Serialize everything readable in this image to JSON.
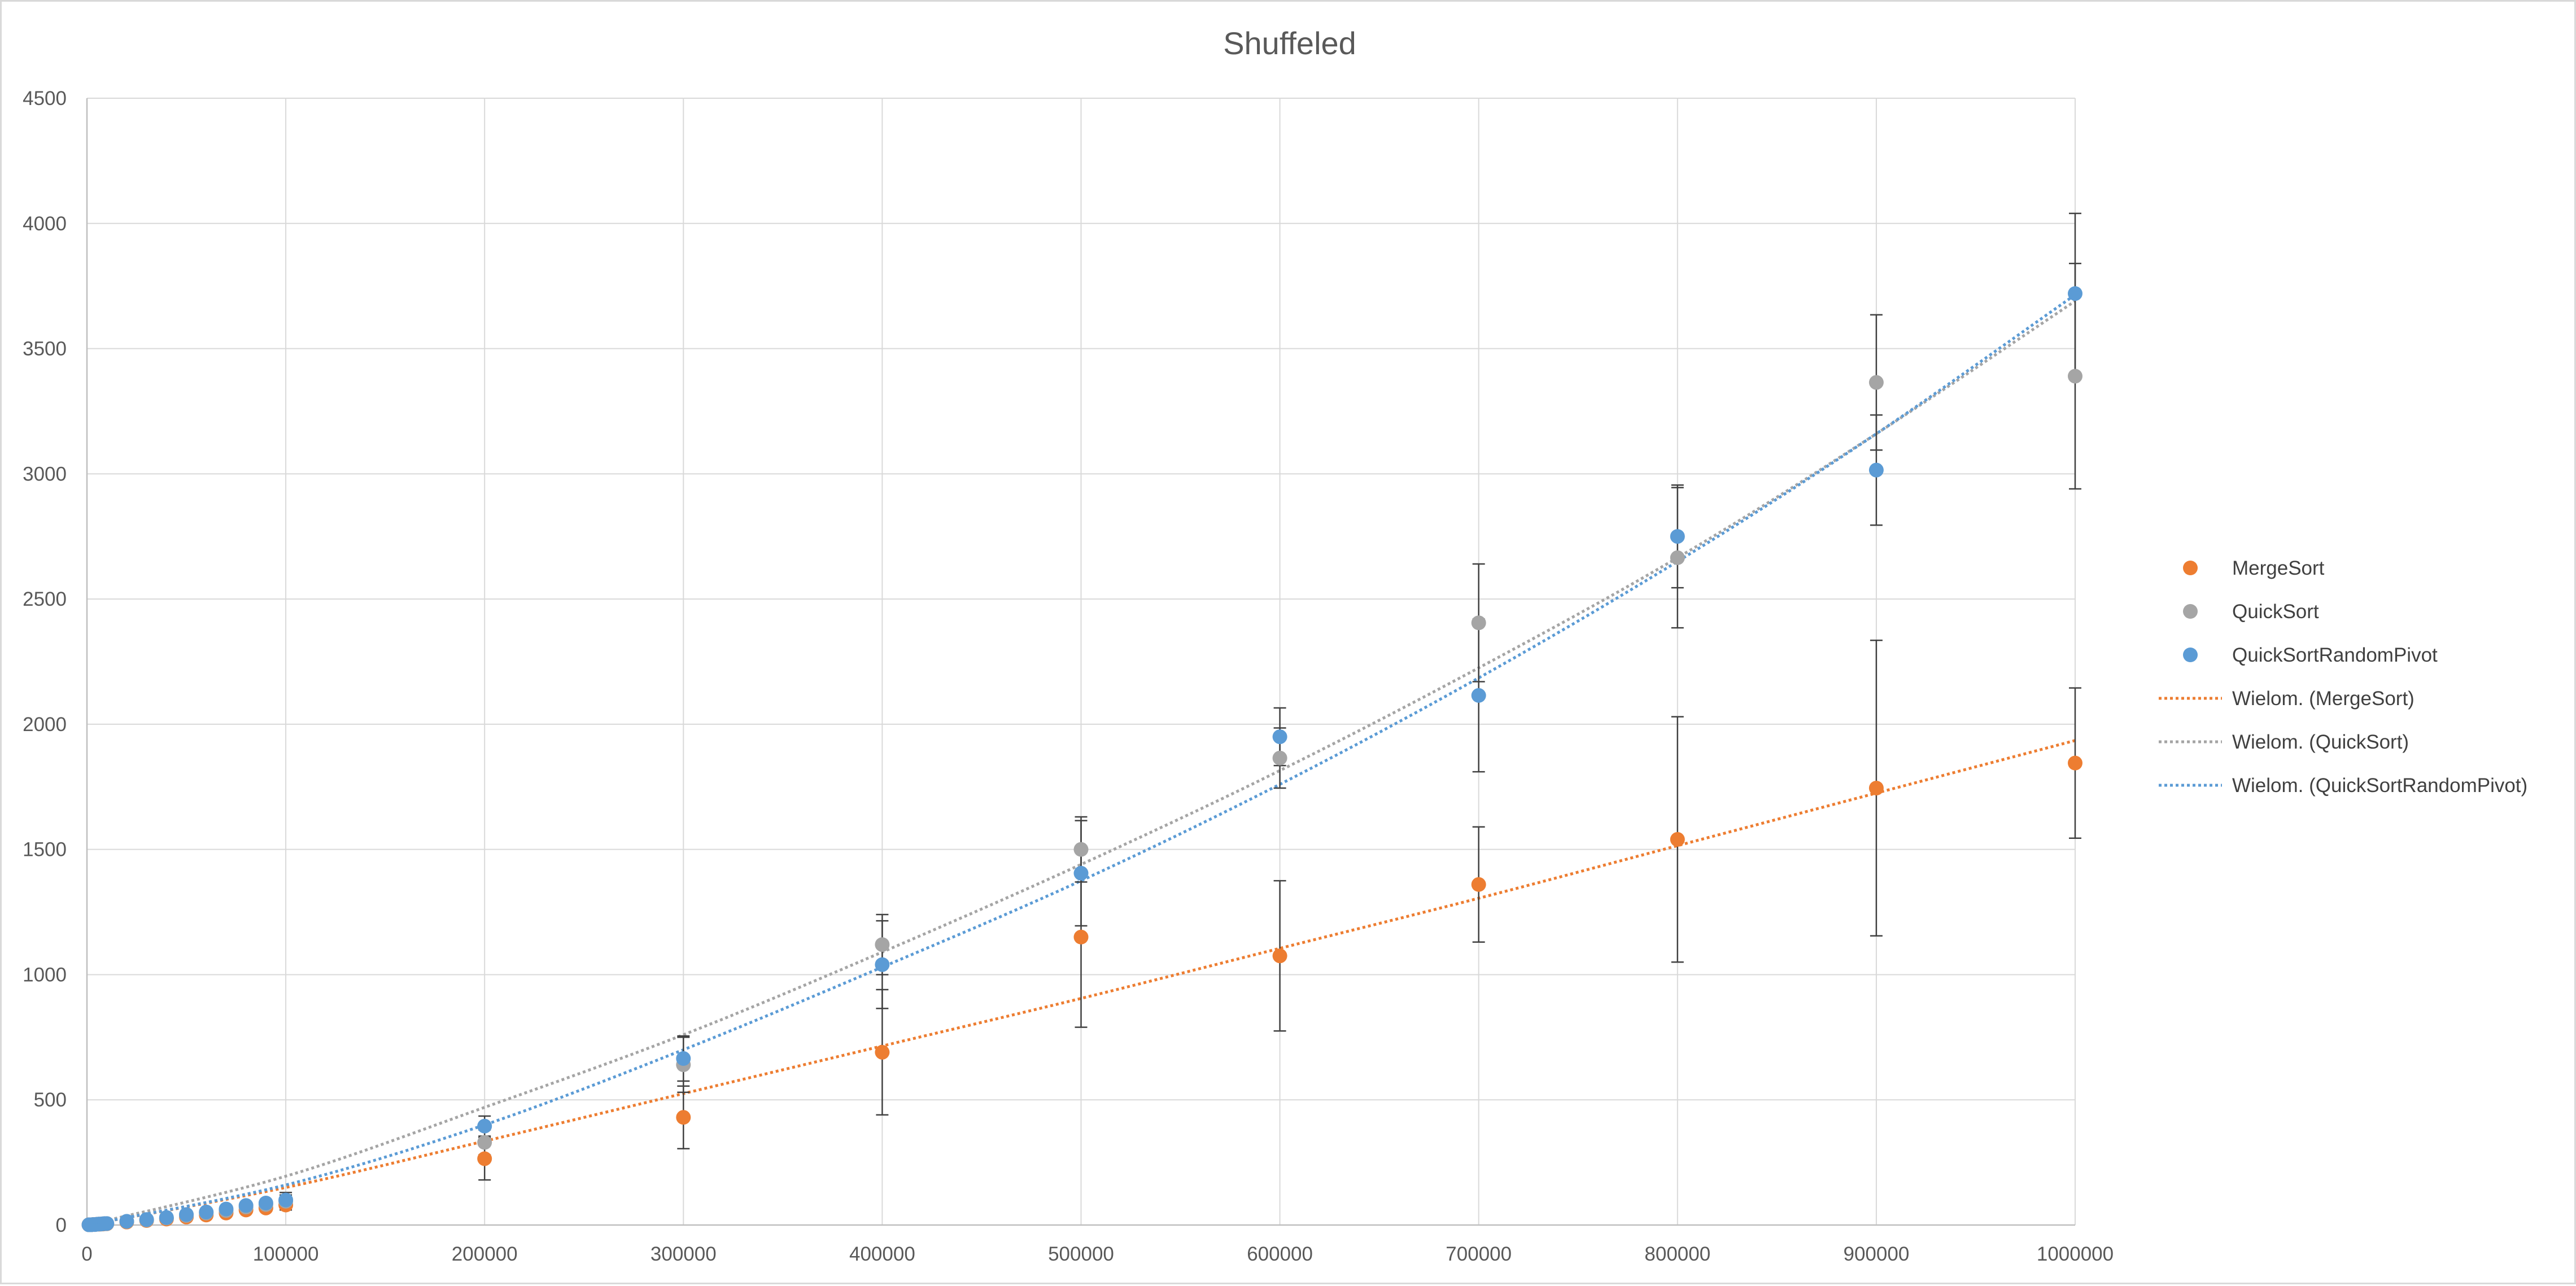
{
  "chart_data": {
    "type": "scatter",
    "title": "Shuffeled",
    "xlabel": "",
    "ylabel": "",
    "xlim": [
      0,
      1000000
    ],
    "ylim": [
      0,
      4500
    ],
    "x_ticks": [
      0,
      100000,
      200000,
      300000,
      400000,
      500000,
      600000,
      700000,
      800000,
      900000,
      1000000
    ],
    "y_ticks": [
      0,
      500,
      1000,
      1500,
      2000,
      2500,
      3000,
      3500,
      4000,
      4500
    ],
    "grid": true,
    "legend_position": "right",
    "series": [
      {
        "name": "MergeSort",
        "color": "#ED7D31",
        "marker": "circle",
        "points": [
          {
            "x": 1000,
            "y": 1
          },
          {
            "x": 2000,
            "y": 1
          },
          {
            "x": 3000,
            "y": 2
          },
          {
            "x": 4000,
            "y": 2
          },
          {
            "x": 5000,
            "y": 3
          },
          {
            "x": 6000,
            "y": 3
          },
          {
            "x": 7000,
            "y": 4
          },
          {
            "x": 8000,
            "y": 4
          },
          {
            "x": 9000,
            "y": 5
          },
          {
            "x": 10000,
            "y": 5
          },
          {
            "x": 20000,
            "y": 12
          },
          {
            "x": 30000,
            "y": 18
          },
          {
            "x": 40000,
            "y": 24
          },
          {
            "x": 50000,
            "y": 32
          },
          {
            "x": 60000,
            "y": 40
          },
          {
            "x": 70000,
            "y": 48
          },
          {
            "x": 80000,
            "y": 60
          },
          {
            "x": 90000,
            "y": 68
          },
          {
            "x": 100000,
            "y": 80,
            "err": 20
          },
          {
            "x": 200000,
            "y": 265,
            "err": 85
          },
          {
            "x": 300000,
            "y": 430,
            "err": 125
          },
          {
            "x": 400000,
            "y": 690,
            "err": 250
          },
          {
            "x": 500000,
            "y": 1150,
            "err": 360
          },
          {
            "x": 600000,
            "y": 1075,
            "err": 300
          },
          {
            "x": 700000,
            "y": 1360,
            "err": 230
          },
          {
            "x": 800000,
            "y": 1540,
            "err": 490
          },
          {
            "x": 900000,
            "y": 1745,
            "err": 590
          },
          {
            "x": 1000000,
            "y": 1845,
            "err": 300
          }
        ]
      },
      {
        "name": "QuickSort",
        "color": "#A5A5A5",
        "marker": "circle",
        "points": [
          {
            "x": 1000,
            "y": 1
          },
          {
            "x": 2000,
            "y": 1
          },
          {
            "x": 3000,
            "y": 2
          },
          {
            "x": 4000,
            "y": 2
          },
          {
            "x": 5000,
            "y": 3
          },
          {
            "x": 6000,
            "y": 4
          },
          {
            "x": 7000,
            "y": 4
          },
          {
            "x": 8000,
            "y": 5
          },
          {
            "x": 9000,
            "y": 5
          },
          {
            "x": 10000,
            "y": 6
          },
          {
            "x": 20000,
            "y": 14
          },
          {
            "x": 30000,
            "y": 20
          },
          {
            "x": 40000,
            "y": 28
          },
          {
            "x": 50000,
            "y": 38
          },
          {
            "x": 60000,
            "y": 48
          },
          {
            "x": 70000,
            "y": 58
          },
          {
            "x": 80000,
            "y": 72
          },
          {
            "x": 90000,
            "y": 82
          },
          {
            "x": 100000,
            "y": 95,
            "err": 25
          },
          {
            "x": 200000,
            "y": 330,
            "err": 50
          },
          {
            "x": 300000,
            "y": 640,
            "err": 110
          },
          {
            "x": 400000,
            "y": 1120,
            "err": 120
          },
          {
            "x": 500000,
            "y": 1500,
            "err": 130
          },
          {
            "x": 600000,
            "y": 1865,
            "err": 120
          },
          {
            "x": 700000,
            "y": 2405,
            "err": 235
          },
          {
            "x": 800000,
            "y": 2665,
            "err": 280
          },
          {
            "x": 900000,
            "y": 3365,
            "err": 270
          },
          {
            "x": 1000000,
            "y": 3390,
            "err": 450
          }
        ]
      },
      {
        "name": "QuickSortRandomPivot",
        "color": "#5B9BD5",
        "marker": "circle",
        "points": [
          {
            "x": 1000,
            "y": 1
          },
          {
            "x": 2000,
            "y": 1
          },
          {
            "x": 3000,
            "y": 2
          },
          {
            "x": 4000,
            "y": 2
          },
          {
            "x": 5000,
            "y": 3
          },
          {
            "x": 6000,
            "y": 4
          },
          {
            "x": 7000,
            "y": 4
          },
          {
            "x": 8000,
            "y": 5
          },
          {
            "x": 9000,
            "y": 6
          },
          {
            "x": 10000,
            "y": 6
          },
          {
            "x": 20000,
            "y": 15
          },
          {
            "x": 30000,
            "y": 22
          },
          {
            "x": 40000,
            "y": 30
          },
          {
            "x": 50000,
            "y": 42
          },
          {
            "x": 60000,
            "y": 52
          },
          {
            "x": 70000,
            "y": 64
          },
          {
            "x": 80000,
            "y": 78
          },
          {
            "x": 90000,
            "y": 88
          },
          {
            "x": 100000,
            "y": 100,
            "err": 30
          },
          {
            "x": 200000,
            "y": 395,
            "err": 40
          },
          {
            "x": 300000,
            "y": 665,
            "err": 90
          },
          {
            "x": 400000,
            "y": 1040,
            "err": 175
          },
          {
            "x": 500000,
            "y": 1405,
            "err": 210
          },
          {
            "x": 600000,
            "y": 1950,
            "err": 115
          },
          {
            "x": 700000,
            "y": 2115,
            "err": 305
          },
          {
            "x": 800000,
            "y": 2750,
            "err": 205
          },
          {
            "x": 900000,
            "y": 3015,
            "err": 220
          },
          {
            "x": 1000000,
            "y": 3720,
            "err": 320
          }
        ]
      }
    ],
    "trendlines": [
      {
        "name": "Wielom. (MergeSort)",
        "type": "polynomial",
        "color": "#ED7D31",
        "style": "dotted",
        "points": [
          [
            0,
            0
          ],
          [
            100000,
            150
          ],
          [
            200000,
            335
          ],
          [
            300000,
            525
          ],
          [
            400000,
            715
          ],
          [
            500000,
            905
          ],
          [
            600000,
            1105
          ],
          [
            700000,
            1305
          ],
          [
            800000,
            1515
          ],
          [
            900000,
            1725
          ],
          [
            1000000,
            1935
          ]
        ]
      },
      {
        "name": "Wielom. (QuickSort)",
        "type": "polynomial",
        "color": "#A5A5A5",
        "style": "dotted",
        "points": [
          [
            0,
            0
          ],
          [
            100000,
            195
          ],
          [
            200000,
            470
          ],
          [
            300000,
            760
          ],
          [
            400000,
            1090
          ],
          [
            500000,
            1440
          ],
          [
            600000,
            1815
          ],
          [
            700000,
            2225
          ],
          [
            800000,
            2665
          ],
          [
            900000,
            3160
          ],
          [
            1000000,
            3690
          ]
        ]
      },
      {
        "name": "Wielom. (QuickSortRandomPivot)",
        "type": "polynomial",
        "color": "#5B9BD5",
        "style": "dotted",
        "points": [
          [
            0,
            0
          ],
          [
            100000,
            160
          ],
          [
            200000,
            400
          ],
          [
            300000,
            700
          ],
          [
            400000,
            1030
          ],
          [
            500000,
            1375
          ],
          [
            600000,
            1760
          ],
          [
            700000,
            2185
          ],
          [
            800000,
            2650
          ],
          [
            900000,
            3160
          ],
          [
            1000000,
            3715
          ]
        ]
      }
    ]
  }
}
